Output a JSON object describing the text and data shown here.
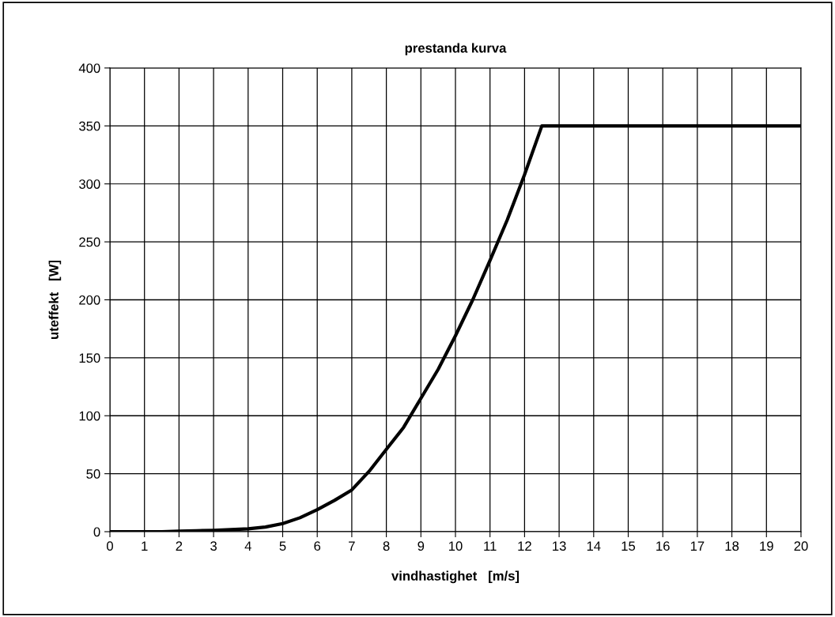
{
  "chart_data": {
    "type": "line",
    "title": "prestanda kurva",
    "xlabel": "vindhastighet   [m/s]",
    "ylabel": "uteffekt   [W]",
    "x": [
      0,
      0.5,
      1,
      1.5,
      2,
      2.5,
      3,
      3.5,
      4,
      4.5,
      5,
      5.5,
      6,
      6.5,
      7,
      7.5,
      8,
      8.5,
      9,
      9.5,
      10,
      10.5,
      11,
      11.5,
      12,
      12.5,
      13,
      14,
      15,
      16,
      17,
      18,
      19,
      20
    ],
    "series": [
      {
        "color": "#000000",
        "values": [
          0,
          0,
          0,
          0,
          0.5,
          0.8,
          1.2,
          1.8,
          2.5,
          4,
          7,
          12,
          19,
          27,
          36,
          52,
          71,
          90,
          115,
          140,
          169,
          200,
          234,
          269,
          308,
          350,
          350,
          350,
          350,
          350,
          350,
          350,
          350,
          350
        ]
      }
    ],
    "xlim": [
      0,
      20
    ],
    "xticks": [
      0,
      1,
      2,
      3,
      4,
      5,
      6,
      7,
      8,
      9,
      10,
      11,
      12,
      13,
      14,
      15,
      16,
      17,
      18,
      19,
      20
    ],
    "ylim": [
      0,
      400
    ],
    "yticks": [
      0,
      50,
      100,
      150,
      200,
      250,
      300,
      350,
      400
    ],
    "grid": true,
    "marker": "none",
    "line_style": "solid"
  }
}
